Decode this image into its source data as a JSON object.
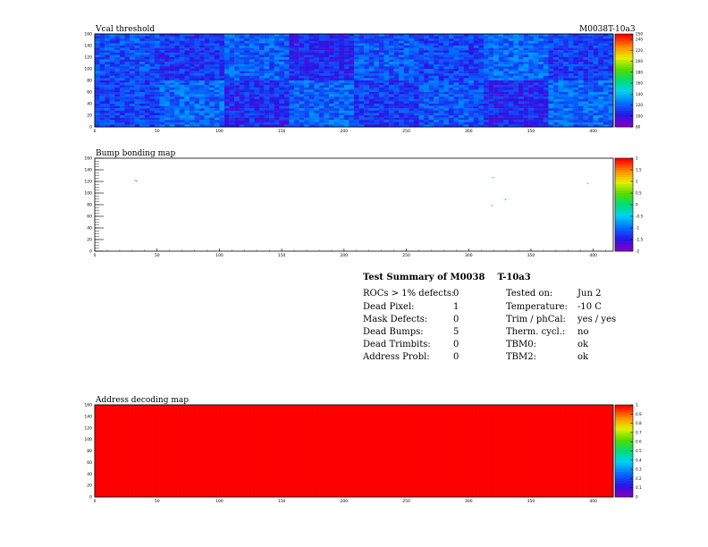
{
  "module_id": "M0038T-10a3",
  "chart_data": [
    {
      "type": "heatmap",
      "title": "Vcal threshold",
      "x_range": [
        0,
        416
      ],
      "y_range": [
        0,
        160
      ],
      "x_ticks": [
        "0",
        "50",
        "100",
        "150",
        "200",
        "250",
        "300",
        "350",
        "400"
      ],
      "y_ticks": [
        "0",
        "20",
        "40",
        "60",
        "80",
        "100",
        "120",
        "140",
        "160"
      ],
      "z_range": [
        80,
        250
      ],
      "z_ticks": [
        "80",
        "100",
        "120",
        "140",
        "160",
        "180",
        "200",
        "220",
        "240",
        "250"
      ],
      "grid": false,
      "legend": "right",
      "rocs": {
        "top": [
          115,
          108,
          118,
          104,
          117,
          112,
          121,
          110
        ],
        "bottom": [
          112,
          120,
          106,
          119,
          110,
          116,
          104,
          120
        ]
      }
    },
    {
      "type": "heatmap",
      "title": "Bump bonding map",
      "x_range": [
        0,
        416
      ],
      "y_range": [
        0,
        160
      ],
      "x_ticks": [
        "0",
        "50",
        "100",
        "150",
        "200",
        "250",
        "300",
        "350",
        "400"
      ],
      "y_ticks": [
        "0",
        "20",
        "40",
        "60",
        "80",
        "100",
        "120",
        "140",
        "160"
      ],
      "z_range": [
        -2,
        2
      ],
      "z_ticks": [
        "-2",
        "-1.5",
        "-1",
        "-0.5",
        "0",
        "0.5",
        "1",
        "1.5",
        "2"
      ],
      "grid": false,
      "legend": "right",
      "points": [
        {
          "x": 32,
          "y": 121,
          "z": 0.3
        },
        {
          "x": 33,
          "y": 120,
          "z": 0.3
        },
        {
          "x": 319,
          "y": 126,
          "z": 0.2
        },
        {
          "x": 318,
          "y": 78,
          "z": 0.2
        },
        {
          "x": 329,
          "y": 88,
          "z": -0.5
        },
        {
          "x": 395,
          "y": 116,
          "z": 0.3
        }
      ]
    },
    {
      "type": "heatmap",
      "title": "Address decoding map",
      "x_range": [
        0,
        416
      ],
      "y_range": [
        0,
        160
      ],
      "x_ticks": [
        "0",
        "50",
        "100",
        "150",
        "200",
        "250",
        "300",
        "350",
        "400"
      ],
      "y_ticks": [
        "0",
        "20",
        "40",
        "60",
        "80",
        "100",
        "120",
        "140",
        "160"
      ],
      "z_range": [
        0,
        1
      ],
      "z_ticks": [
        "0",
        "0.1",
        "0.2",
        "0.3",
        "0.4",
        "0.5",
        "0.6",
        "0.7",
        "0.8",
        "0.9",
        "1"
      ],
      "grid": false,
      "legend": "right",
      "uniform_value": 1
    }
  ],
  "summary": {
    "title_prefix": "Test Summary of M0038",
    "title_suffix": "T-10a3",
    "left": [
      {
        "label": "ROCs > 1% defects:",
        "value": "0"
      },
      {
        "label": "Dead Pixel:",
        "value": "1"
      },
      {
        "label": "Mask Defects:",
        "value": "0"
      },
      {
        "label": "Dead Bumps:",
        "value": "5"
      },
      {
        "label": "Dead Trimbits:",
        "value": "0"
      },
      {
        "label": "Address Probl:",
        "value": "0"
      }
    ],
    "right": [
      {
        "label": "Tested on:",
        "value": "Jun 2"
      },
      {
        "label": "Temperature:",
        "value": "-10 C"
      },
      {
        "label": "Trim / phCal:",
        "value": "yes / yes"
      },
      {
        "label": "Therm. cycl.:",
        "value": "no"
      },
      {
        "label": "TBM0:",
        "value": "ok"
      },
      {
        "label": "TBM2:",
        "value": "ok"
      }
    ]
  }
}
